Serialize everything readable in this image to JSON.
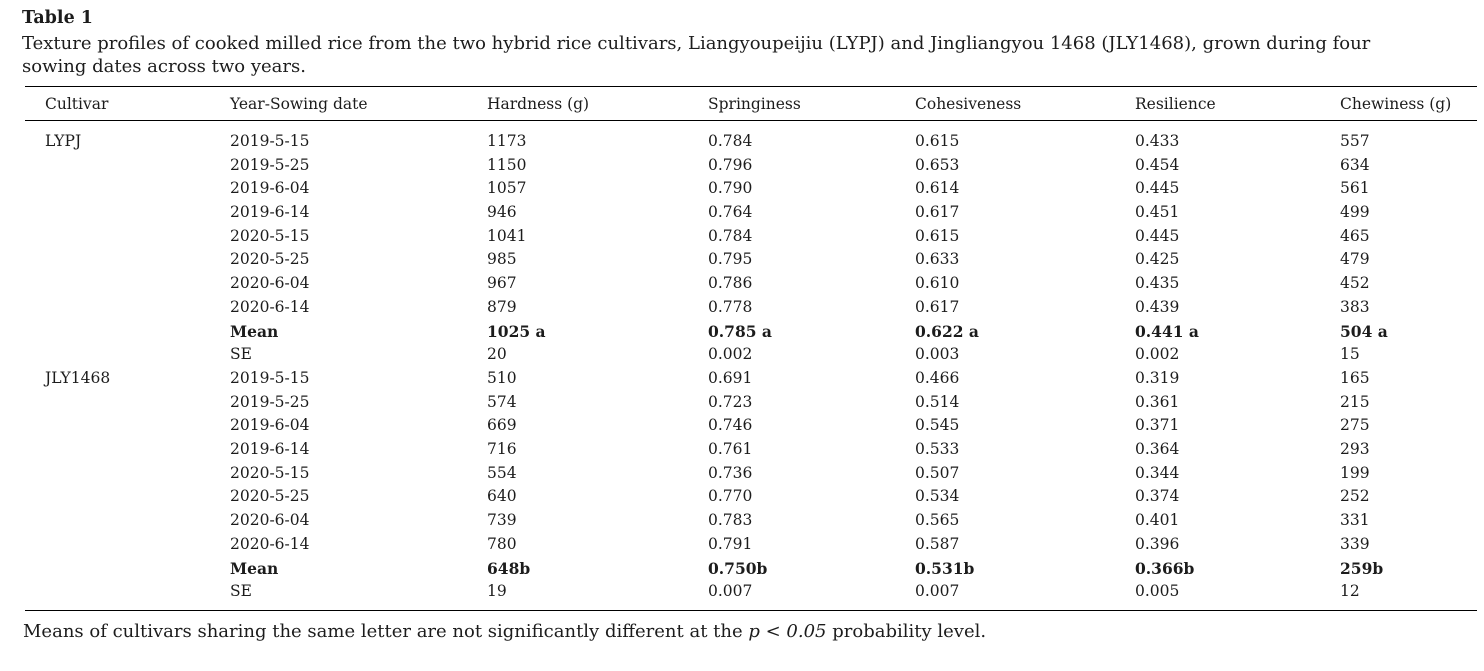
{
  "page": {
    "label": "Table 1",
    "caption": "Texture profiles of cooked milled rice from the two hybrid rice cultivars, Liangyoupeijiu (LYPJ) and Jingliangyou 1468 (JLY1468), grown during four sowing dates across two years.",
    "footnote": {
      "prefix": "Means of cultivars sharing the same letter are not significantly different at the ",
      "italic": "p < 0.05",
      "suffix": " probability level."
    }
  },
  "table": {
    "columns": [
      "Cultivar",
      "Year-Sowing date",
      "Hardness (g)",
      "Springiness",
      "Cohesiveness",
      "Resilience",
      "Chewiness (g)"
    ],
    "rows": [
      {
        "bold": false,
        "cells": [
          "LYPJ",
          "2019-5-15",
          "1173",
          "0.784",
          "0.615",
          "0.433",
          "557"
        ]
      },
      {
        "bold": false,
        "cells": [
          "",
          "2019-5-25",
          "1150",
          "0.796",
          "0.653",
          "0.454",
          "634"
        ]
      },
      {
        "bold": false,
        "cells": [
          "",
          "2019-6-04",
          "1057",
          "0.790",
          "0.614",
          "0.445",
          "561"
        ]
      },
      {
        "bold": false,
        "cells": [
          "",
          "2019-6-14",
          "946",
          "0.764",
          "0.617",
          "0.451",
          "499"
        ]
      },
      {
        "bold": false,
        "cells": [
          "",
          "2020-5-15",
          "1041",
          "0.784",
          "0.615",
          "0.445",
          "465"
        ]
      },
      {
        "bold": false,
        "cells": [
          "",
          "2020-5-25",
          "985",
          "0.795",
          "0.633",
          "0.425",
          "479"
        ]
      },
      {
        "bold": false,
        "cells": [
          "",
          "2020-6-04",
          "967",
          "0.786",
          "0.610",
          "0.435",
          "452"
        ]
      },
      {
        "bold": false,
        "cells": [
          "",
          "2020-6-14",
          "879",
          "0.778",
          "0.617",
          "0.439",
          "383"
        ]
      },
      {
        "bold": true,
        "cells": [
          "",
          "Mean",
          "1025 a",
          "0.785 a",
          "0.622 a",
          "0.441 a",
          "504 a"
        ]
      },
      {
        "bold": false,
        "cells": [
          "",
          "SE",
          "20",
          "0.002",
          "0.003",
          "0.002",
          "15"
        ]
      },
      {
        "bold": false,
        "cells": [
          "JLY1468",
          "2019-5-15",
          "510",
          "0.691",
          "0.466",
          "0.319",
          "165"
        ]
      },
      {
        "bold": false,
        "cells": [
          "",
          "2019-5-25",
          "574",
          "0.723",
          "0.514",
          "0.361",
          "215"
        ]
      },
      {
        "bold": false,
        "cells": [
          "",
          "2019-6-04",
          "669",
          "0.746",
          "0.545",
          "0.371",
          "275"
        ]
      },
      {
        "bold": false,
        "cells": [
          "",
          "2019-6-14",
          "716",
          "0.761",
          "0.533",
          "0.364",
          "293"
        ]
      },
      {
        "bold": false,
        "cells": [
          "",
          "2020-5-15",
          "554",
          "0.736",
          "0.507",
          "0.344",
          "199"
        ]
      },
      {
        "bold": false,
        "cells": [
          "",
          "2020-5-25",
          "640",
          "0.770",
          "0.534",
          "0.374",
          "252"
        ]
      },
      {
        "bold": false,
        "cells": [
          "",
          "2020-6-04",
          "739",
          "0.783",
          "0.565",
          "0.401",
          "331"
        ]
      },
      {
        "bold": false,
        "cells": [
          "",
          "2020-6-14",
          "780",
          "0.791",
          "0.587",
          "0.396",
          "339"
        ]
      },
      {
        "bold": true,
        "cells": [
          "",
          "Mean",
          "648b",
          "0.750b",
          "0.531b",
          "0.366b",
          "259b"
        ]
      },
      {
        "bold": false,
        "cells": [
          "",
          "SE",
          "19",
          "0.007",
          "0.007",
          "0.005",
          "12"
        ]
      }
    ]
  }
}
